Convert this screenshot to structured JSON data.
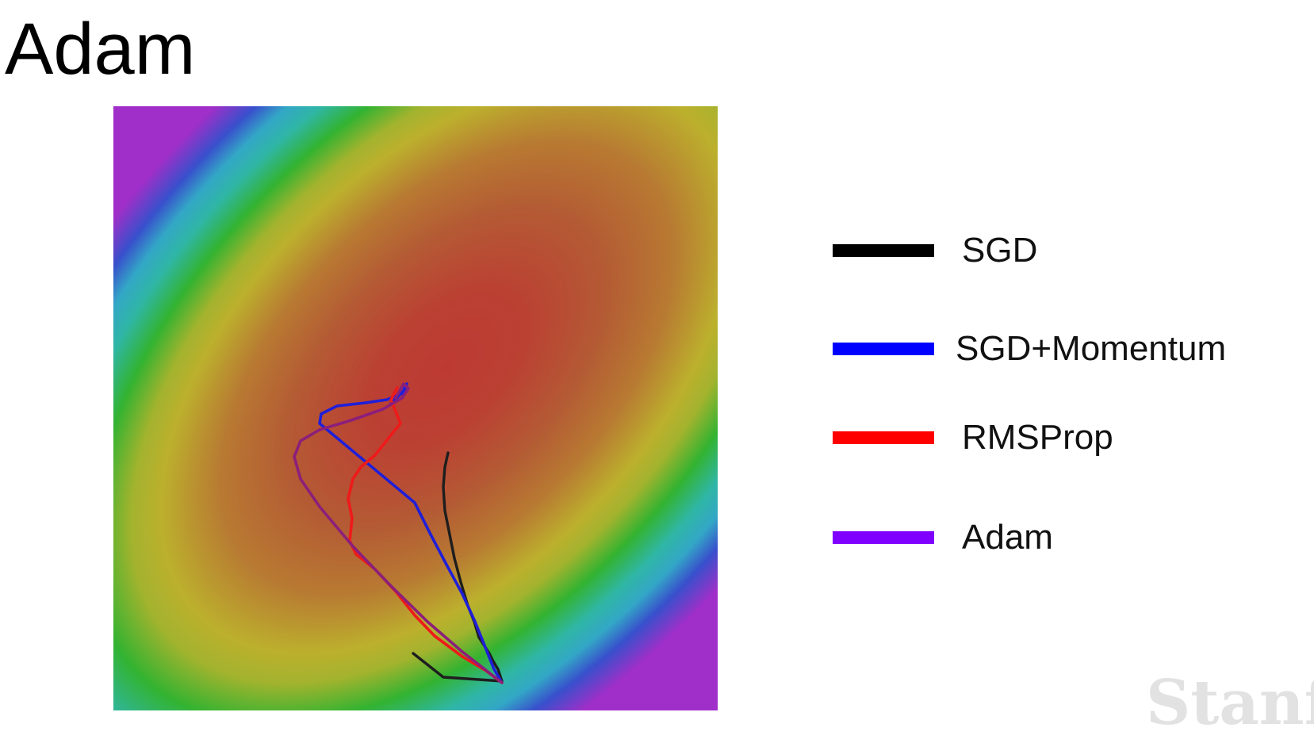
{
  "title": "Adam",
  "legend": [
    {
      "label": "SGD",
      "color": "#000000"
    },
    {
      "label": "SGD+Momentum",
      "color": "#0000ff"
    },
    {
      "label": "RMSProp",
      "color": "#ff0000"
    },
    {
      "label": "Adam",
      "color": "#8000ff"
    }
  ],
  "watermark": "Stanf",
  "diagram": {
    "background": "elliptical loss-surface contour map (red center, through orange, yellow, green, cyan, blue, purple in corners)",
    "paths": [
      {
        "name": "SGD",
        "color": "#000000"
      },
      {
        "name": "SGD+Momentum",
        "color": "#0000ff"
      },
      {
        "name": "RMSProp",
        "color": "#ff0000"
      },
      {
        "name": "Adam",
        "color": "#8000ff"
      }
    ]
  }
}
